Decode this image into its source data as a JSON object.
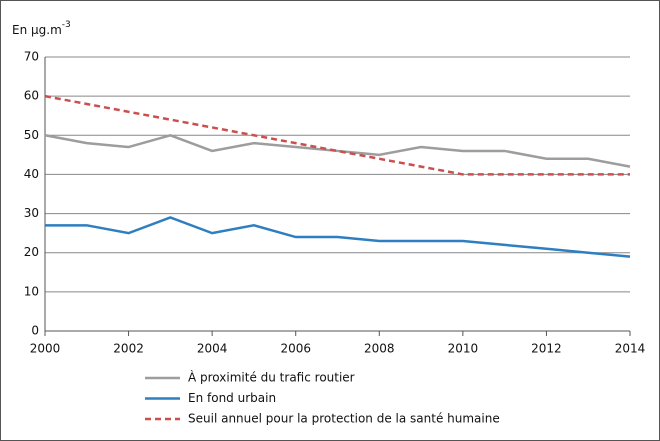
{
  "chart_data": {
    "type": "line",
    "y_label": {
      "text": "En µg.m",
      "superscript": "-3"
    },
    "x": [
      2000,
      2001,
      2002,
      2003,
      2004,
      2005,
      2006,
      2007,
      2008,
      2009,
      2010,
      2011,
      2012,
      2013,
      2014
    ],
    "series": [
      {
        "name": "À proximité du trafic routier",
        "color": "#9d9d9d",
        "linestyle": "solid",
        "values": [
          50,
          48,
          47,
          50,
          46,
          48,
          47,
          46,
          45,
          47,
          46,
          46,
          44,
          44,
          42
        ]
      },
      {
        "name": "En fond urbain",
        "color": "#2e7fc1",
        "linestyle": "solid",
        "values": [
          27,
          27,
          25,
          29,
          25,
          27,
          24,
          24,
          23,
          23,
          23,
          22,
          21,
          20,
          19
        ]
      },
      {
        "name": "Seuil annuel pour la protection de la santé humaine",
        "color": "#c9504f",
        "linestyle": "dashed",
        "values": [
          60,
          58,
          56,
          54,
          52,
          50,
          48,
          46,
          44,
          42,
          40,
          40,
          40,
          40,
          40
        ]
      }
    ],
    "xlim": [
      2000,
      2014
    ],
    "xticks": [
      2000,
      2002,
      2004,
      2006,
      2008,
      2010,
      2012,
      2014
    ],
    "ylim": [
      0,
      70
    ],
    "yticks": [
      0,
      10,
      20,
      30,
      40,
      50,
      60,
      70
    ],
    "grid": true,
    "legend": "bottom"
  }
}
